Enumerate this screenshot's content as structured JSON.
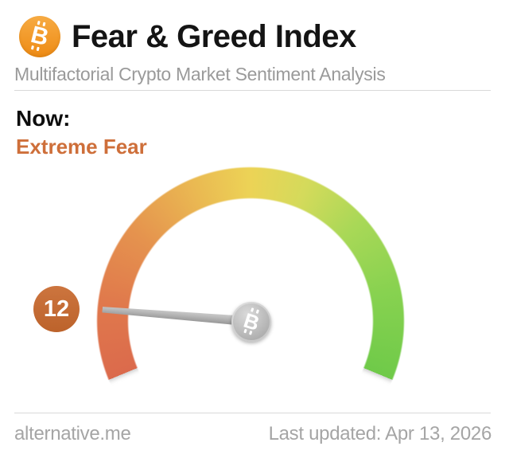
{
  "header": {
    "title": "Fear & Greed Index",
    "subtitle": "Multifactorial Crypto Market Sentiment Analysis",
    "logo_icon": "bitcoin-icon"
  },
  "now": {
    "label": "Now:",
    "classification": "Extreme Fear"
  },
  "chart_data": {
    "type": "gauge",
    "title": "Fear & Greed Index",
    "value": 12,
    "min": 0,
    "max": 100,
    "classification": "Extreme Fear",
    "sweep_degrees": 225,
    "needle_icon": "bitcoin-hub-icon",
    "scale": [
      {
        "deg": 0,
        "color": "#db6a4c"
      },
      {
        "deg": 30,
        "color": "#e0794c"
      },
      {
        "deg": 60,
        "color": "#e5934e"
      },
      {
        "deg": 90,
        "color": "#eab952"
      },
      {
        "deg": 112.5,
        "color": "#ecd356"
      },
      {
        "deg": 135,
        "color": "#d4da5b"
      },
      {
        "deg": 160,
        "color": "#a9d857"
      },
      {
        "deg": 190,
        "color": "#88d250"
      },
      {
        "deg": 225,
        "color": "#6fca49"
      }
    ]
  },
  "footer": {
    "site": "alternative.me",
    "last_updated": "Last updated: Apr 13, 2026"
  },
  "colors": {
    "accent_orange": "#ce6f3a",
    "badge_orange": "#c8692e",
    "bitcoin_orange_top": "#f7ab43",
    "bitcoin_orange_bottom": "#ee8b14",
    "title_black": "#141414",
    "subtitle_gray": "#9a9a9a",
    "footer_gray": "#a5a5a5",
    "separator_gray": "#d9d9d9",
    "needle_gray": "#b5b5b5",
    "hub_gray": "#b9b9b9"
  }
}
